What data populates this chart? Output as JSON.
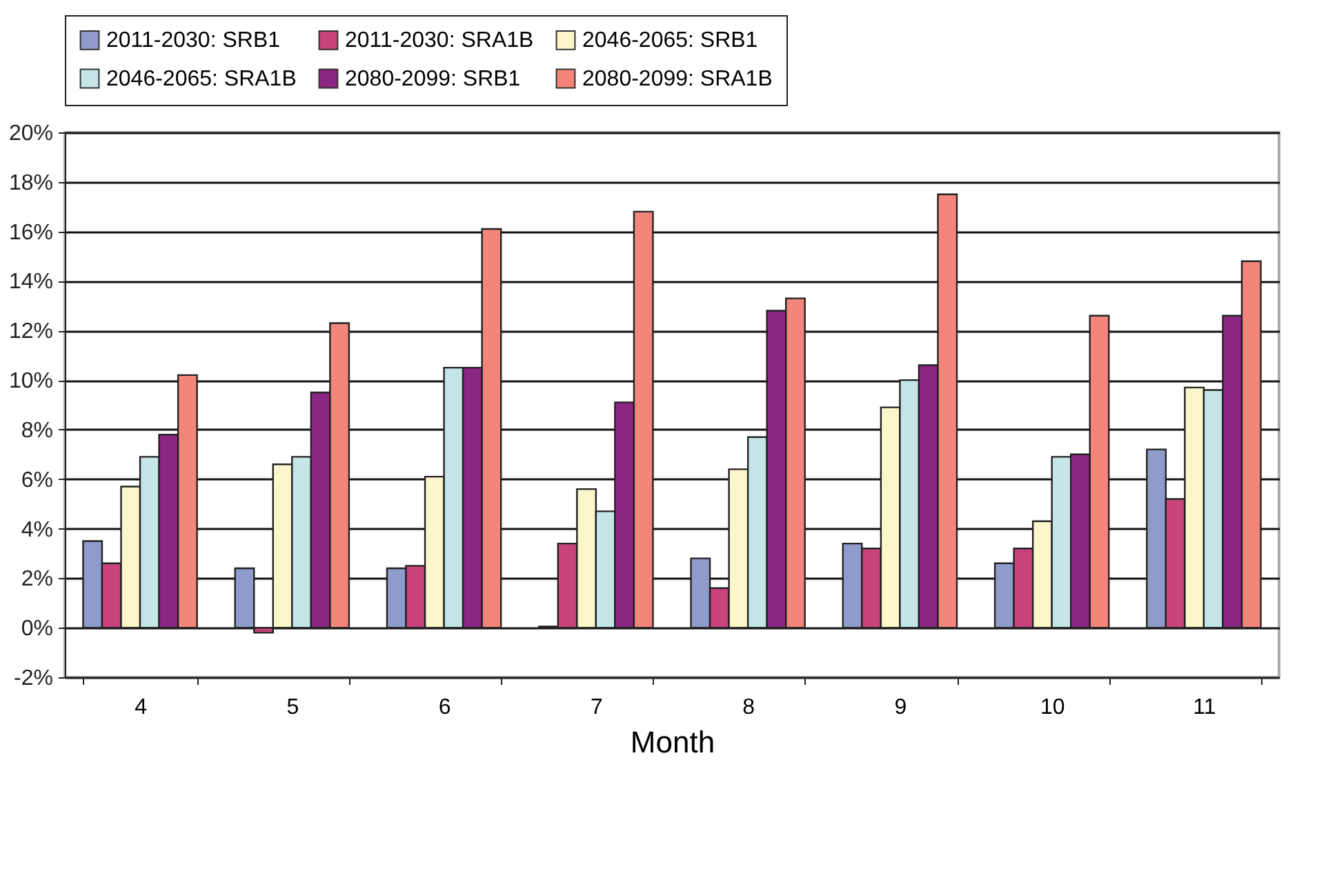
{
  "chart_data": {
    "type": "bar",
    "xlabel": "Month",
    "categories": [
      "4",
      "5",
      "6",
      "7",
      "8",
      "9",
      "10",
      "11"
    ],
    "series": [
      {
        "name": "2011-2030: SRB1",
        "color": "#8f9bcb",
        "values": [
          3.5,
          2.4,
          2.4,
          0.05,
          2.8,
          3.4,
          2.6,
          7.2
        ]
      },
      {
        "name": "2011-2030: SRA1B",
        "color": "#c8447a",
        "values": [
          2.6,
          -0.2,
          2.5,
          3.4,
          1.6,
          3.2,
          3.2,
          5.2
        ]
      },
      {
        "name": "2046-2065: SRB1",
        "color": "#fdf5cc",
        "values": [
          5.7,
          6.6,
          6.1,
          5.6,
          6.4,
          8.9,
          4.3,
          9.7
        ]
      },
      {
        "name": "2046-2065: SRA1B",
        "color": "#c6e5e6",
        "values": [
          6.9,
          6.9,
          10.5,
          4.7,
          7.7,
          10.0,
          6.9,
          9.6
        ]
      },
      {
        "name": "2080-2099: SRB1",
        "color": "#8b2682",
        "values": [
          7.8,
          9.5,
          10.5,
          9.1,
          12.8,
          10.6,
          7.0,
          12.6
        ]
      },
      {
        "name": "2080-2099: SRA1B",
        "color": "#f4857b",
        "values": [
          10.2,
          12.3,
          16.1,
          16.8,
          13.3,
          17.5,
          12.6,
          14.8
        ]
      }
    ],
    "ylim": [
      -2,
      20
    ],
    "yticks": [
      {
        "value": -2,
        "label": "-2%"
      },
      {
        "value": 0,
        "label": "0%"
      },
      {
        "value": 2,
        "label": "2%"
      },
      {
        "value": 4,
        "label": "4%"
      },
      {
        "value": 6,
        "label": "6%"
      },
      {
        "value": 8,
        "label": "8%"
      },
      {
        "value": 10,
        "label": "10%"
      },
      {
        "value": 12,
        "label": "12%"
      },
      {
        "value": 14,
        "label": "14%"
      },
      {
        "value": 16,
        "label": "16%"
      },
      {
        "value": 18,
        "label": "18%"
      },
      {
        "value": 20,
        "label": "20%"
      }
    ],
    "grid": "y",
    "legend": "top"
  }
}
